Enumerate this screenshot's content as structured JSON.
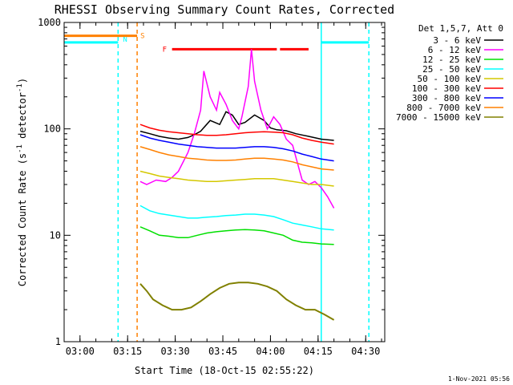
{
  "chart_data": {
    "type": "line",
    "title": "RHESSI Observing Summary Count Rates, Corrected",
    "xlabel": "Start Time (18-Oct-15 02:55:22)",
    "ylabel_main": "Corrected Count Rate (s",
    "ylabel_sup1": "-1",
    "ylabel_mid": " detector",
    "ylabel_sup2": "-1",
    "ylabel_end": ")",
    "y_scale": "log",
    "ylim": [
      1,
      1000
    ],
    "xlim_minutes": [
      "02:55",
      "04:36"
    ],
    "x_ticks": [
      "03:00",
      "03:15",
      "03:30",
      "03:45",
      "04:00",
      "04:15",
      "04:30"
    ],
    "y_ticks": [
      "1",
      "10",
      "100",
      "1000"
    ],
    "legend_header": "Det 1,5,7, Att 0",
    "legend_placement": "right, outside",
    "timestamp": "1-Nov-2021 05:56",
    "series": [
      {
        "name": "3 - 6 keV",
        "color": "#000000",
        "points": [
          [
            "03:19",
            95
          ],
          [
            "03:22",
            90
          ],
          [
            "03:25",
            85
          ],
          [
            "03:28",
            82
          ],
          [
            "03:31",
            80
          ],
          [
            "03:34",
            83
          ],
          [
            "03:36",
            88
          ],
          [
            "03:38",
            95
          ],
          [
            "03:41",
            120
          ],
          [
            "03:44",
            110
          ],
          [
            "03:46",
            145
          ],
          [
            "03:48",
            135
          ],
          [
            "03:50",
            110
          ],
          [
            "03:52",
            115
          ],
          [
            "03:55",
            135
          ],
          [
            "03:58",
            120
          ],
          [
            "04:00",
            102
          ],
          [
            "04:02",
            98
          ],
          [
            "04:05",
            96
          ],
          [
            "04:08",
            90
          ],
          [
            "04:12",
            85
          ],
          [
            "04:16",
            80
          ],
          [
            "04:20",
            78
          ]
        ]
      },
      {
        "name": "6 - 12 keV",
        "color": "#ff00ff",
        "points": [
          [
            "03:19",
            32
          ],
          [
            "03:21",
            30
          ],
          [
            "03:24",
            33
          ],
          [
            "03:27",
            32
          ],
          [
            "03:29",
            35
          ],
          [
            "03:31",
            40
          ],
          [
            "03:34",
            60
          ],
          [
            "03:36",
            90
          ],
          [
            "03:38",
            150
          ],
          [
            "03:39",
            350
          ],
          [
            "03:41",
            200
          ],
          [
            "03:43",
            150
          ],
          [
            "03:44",
            220
          ],
          [
            "03:46",
            170
          ],
          [
            "03:48",
            120
          ],
          [
            "03:50",
            100
          ],
          [
            "03:51",
            130
          ],
          [
            "03:53",
            250
          ],
          [
            "03:54",
            560
          ],
          [
            "03:55",
            280
          ],
          [
            "03:57",
            150
          ],
          [
            "03:59",
            100
          ],
          [
            "04:01",
            130
          ],
          [
            "04:03",
            110
          ],
          [
            "04:05",
            80
          ],
          [
            "04:07",
            70
          ],
          [
            "04:09",
            42
          ],
          [
            "04:10",
            33
          ],
          [
            "04:12",
            30
          ],
          [
            "04:14",
            32
          ],
          [
            "04:16",
            28
          ],
          [
            "04:18",
            23
          ],
          [
            "04:20",
            18
          ]
        ]
      },
      {
        "name": "12 - 25 keV",
        "color": "#00e000",
        "points": [
          [
            "03:19",
            12
          ],
          [
            "03:22",
            11
          ],
          [
            "03:25",
            10
          ],
          [
            "03:28",
            9.8
          ],
          [
            "03:31",
            9.5
          ],
          [
            "03:34",
            9.5
          ],
          [
            "03:37",
            10
          ],
          [
            "03:40",
            10.5
          ],
          [
            "03:43",
            10.8
          ],
          [
            "03:46",
            11
          ],
          [
            "03:49",
            11.2
          ],
          [
            "03:52",
            11.3
          ],
          [
            "03:55",
            11.2
          ],
          [
            "03:58",
            11
          ],
          [
            "04:01",
            10.5
          ],
          [
            "04:04",
            10
          ],
          [
            "04:07",
            9
          ],
          [
            "04:10",
            8.6
          ],
          [
            "04:13",
            8.5
          ],
          [
            "04:16",
            8.3
          ],
          [
            "04:20",
            8.2
          ]
        ]
      },
      {
        "name": "25 - 50 keV",
        "color": "#00ffff",
        "points": [
          [
            "03:19",
            19
          ],
          [
            "03:22",
            17
          ],
          [
            "03:25",
            16
          ],
          [
            "03:28",
            15.5
          ],
          [
            "03:31",
            15
          ],
          [
            "03:34",
            14.5
          ],
          [
            "03:37",
            14.5
          ],
          [
            "03:40",
            14.8
          ],
          [
            "03:43",
            15
          ],
          [
            "03:46",
            15.3
          ],
          [
            "03:49",
            15.5
          ],
          [
            "03:52",
            15.8
          ],
          [
            "03:55",
            15.8
          ],
          [
            "03:58",
            15.5
          ],
          [
            "04:01",
            15
          ],
          [
            "04:04",
            14
          ],
          [
            "04:07",
            13
          ],
          [
            "04:10",
            12.5
          ],
          [
            "04:13",
            12
          ],
          [
            "04:16",
            11.5
          ],
          [
            "04:20",
            11.2
          ]
        ]
      },
      {
        "name": "50 - 100 keV",
        "color": "#d4c800",
        "points": [
          [
            "03:19",
            40
          ],
          [
            "03:22",
            38
          ],
          [
            "03:25",
            36
          ],
          [
            "03:28",
            35
          ],
          [
            "03:31",
            34
          ],
          [
            "03:34",
            33
          ],
          [
            "03:37",
            32.5
          ],
          [
            "03:40",
            32
          ],
          [
            "03:43",
            32
          ],
          [
            "03:46",
            32.5
          ],
          [
            "03:49",
            33
          ],
          [
            "03:52",
            33.5
          ],
          [
            "03:55",
            34
          ],
          [
            "03:58",
            34
          ],
          [
            "04:01",
            34
          ],
          [
            "04:04",
            33
          ],
          [
            "04:07",
            32
          ],
          [
            "04:10",
            31
          ],
          [
            "04:13",
            30
          ],
          [
            "04:16",
            30
          ],
          [
            "04:20",
            29
          ]
        ]
      },
      {
        "name": "100 - 300 keV",
        "color": "#ff0000",
        "points": [
          [
            "03:19",
            110
          ],
          [
            "03:22",
            102
          ],
          [
            "03:25",
            97
          ],
          [
            "03:28",
            94
          ],
          [
            "03:31",
            92
          ],
          [
            "03:34",
            90
          ],
          [
            "03:37",
            88
          ],
          [
            "03:40",
            87
          ],
          [
            "03:43",
            87
          ],
          [
            "03:46",
            88
          ],
          [
            "03:49",
            90
          ],
          [
            "03:52",
            92
          ],
          [
            "03:55",
            93
          ],
          [
            "03:58",
            94
          ],
          [
            "04:01",
            93
          ],
          [
            "04:04",
            92
          ],
          [
            "04:07",
            88
          ],
          [
            "04:10",
            82
          ],
          [
            "04:13",
            78
          ],
          [
            "04:16",
            75
          ],
          [
            "04:20",
            72
          ]
        ]
      },
      {
        "name": "300 - 800 keV",
        "color": "#0000ff",
        "points": [
          [
            "03:19",
            88
          ],
          [
            "03:22",
            82
          ],
          [
            "03:25",
            78
          ],
          [
            "03:28",
            75
          ],
          [
            "03:31",
            72
          ],
          [
            "03:34",
            70
          ],
          [
            "03:37",
            68
          ],
          [
            "03:40",
            67
          ],
          [
            "03:43",
            66
          ],
          [
            "03:46",
            66
          ],
          [
            "03:49",
            66
          ],
          [
            "03:52",
            67
          ],
          [
            "03:55",
            68
          ],
          [
            "03:58",
            68
          ],
          [
            "04:01",
            67
          ],
          [
            "04:04",
            65
          ],
          [
            "04:07",
            62
          ],
          [
            "04:10",
            58
          ],
          [
            "04:13",
            55
          ],
          [
            "04:16",
            52
          ],
          [
            "04:20",
            50
          ]
        ]
      },
      {
        "name": "800 - 7000 keV",
        "color": "#ff8000",
        "points": [
          [
            "03:19",
            68
          ],
          [
            "03:22",
            64
          ],
          [
            "03:25",
            60
          ],
          [
            "03:28",
            57
          ],
          [
            "03:31",
            55
          ],
          [
            "03:34",
            53
          ],
          [
            "03:37",
            52
          ],
          [
            "03:40",
            51
          ],
          [
            "03:43",
            50.5
          ],
          [
            "03:46",
            50.5
          ],
          [
            "03:49",
            51
          ],
          [
            "03:52",
            52
          ],
          [
            "03:55",
            53
          ],
          [
            "03:58",
            53
          ],
          [
            "04:01",
            52
          ],
          [
            "04:04",
            51
          ],
          [
            "04:07",
            49
          ],
          [
            "04:10",
            46
          ],
          [
            "04:13",
            44
          ],
          [
            "04:16",
            42
          ],
          [
            "04:20",
            41
          ]
        ]
      },
      {
        "name": "7000 - 15000 keV",
        "color": "#808000",
        "points": [
          [
            "03:19",
            3.5
          ],
          [
            "03:21",
            3
          ],
          [
            "03:23",
            2.5
          ],
          [
            "03:26",
            2.2
          ],
          [
            "03:29",
            2
          ],
          [
            "03:32",
            2
          ],
          [
            "03:35",
            2.1
          ],
          [
            "03:38",
            2.4
          ],
          [
            "03:41",
            2.8
          ],
          [
            "03:44",
            3.2
          ],
          [
            "03:47",
            3.5
          ],
          [
            "03:50",
            3.6
          ],
          [
            "03:53",
            3.6
          ],
          [
            "03:56",
            3.5
          ],
          [
            "03:59",
            3.3
          ],
          [
            "04:02",
            3
          ],
          [
            "04:05",
            2.5
          ],
          [
            "04:08",
            2.2
          ],
          [
            "04:11",
            2
          ],
          [
            "04:14",
            2
          ],
          [
            "04:17",
            1.8
          ],
          [
            "04:20",
            1.6
          ]
        ]
      }
    ],
    "flags": [
      {
        "label": "S",
        "color": "#ff8000",
        "y": 750,
        "start": "02:55",
        "end": "03:18"
      },
      {
        "label": "F",
        "color": "#ff0000",
        "y": 560,
        "start": "03:29",
        "end": "04:02"
      },
      {
        "label": "",
        "color": "#ff0000",
        "y": 560,
        "start": "04:03",
        "end": "04:12"
      }
    ],
    "region_lines": [
      {
        "label": "N",
        "color": "#00ffff",
        "style": "dashed",
        "at": "03:12"
      },
      {
        "label": "",
        "color": "#00ffff",
        "style": "solid",
        "at": "04:16"
      },
      {
        "label": "",
        "color": "#00ffff",
        "style": "dashed",
        "at": "04:31"
      },
      {
        "label": "",
        "color": "#ff8000",
        "style": "dashed",
        "at": "03:18"
      }
    ],
    "night_segments": [
      {
        "color": "#00ffff",
        "y": 650,
        "start": "02:55",
        "end": "03:12"
      },
      {
        "color": "#00ffff",
        "y": 650,
        "start": "04:16",
        "end": "04:31"
      }
    ]
  }
}
